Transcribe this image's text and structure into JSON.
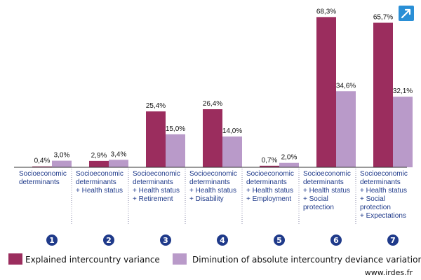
{
  "chart_data": {
    "type": "bar",
    "ylim": [
      0,
      70
    ],
    "grid": false,
    "legend_placement": "bottom",
    "categories": [
      {
        "number": "1",
        "lines": [
          "Socioeconomic",
          "determinants"
        ]
      },
      {
        "number": "2",
        "lines": [
          "Socioeconomic",
          "determinants",
          "+ Health status"
        ]
      },
      {
        "number": "3",
        "lines": [
          "Socioeconomic",
          "determinants",
          "+ Health status",
          "+ Retirement"
        ]
      },
      {
        "number": "4",
        "lines": [
          "Socioeconomic",
          "determinants",
          "+ Health status",
          "+ Disability"
        ]
      },
      {
        "number": "5",
        "lines": [
          "Socioeconomic",
          "determinants",
          "+ Health status",
          "+ Employment"
        ]
      },
      {
        "number": "6",
        "lines": [
          "Socioeconomic",
          "determinants",
          "+ Health status",
          "+ Social",
          "protection"
        ]
      },
      {
        "number": "7",
        "lines": [
          "Socioeconomic",
          "determinants",
          "+ Health status",
          "+ Social",
          "protection",
          "+ Expectations"
        ]
      }
    ],
    "series": [
      {
        "name": "Explained intercountry variance",
        "color": "#9b2d5e",
        "values": [
          0.4,
          2.9,
          25.4,
          26.4,
          0.7,
          68.3,
          65.7
        ],
        "labels": [
          "0,4%",
          "2,9%",
          "25,4%",
          "26,4%",
          "0,7%",
          "68,3%",
          "65,7%"
        ]
      },
      {
        "name": "Diminution of absolute intercountry deviance variation",
        "color": "#b99ac9",
        "values": [
          3.0,
          3.4,
          15.0,
          14.0,
          2.0,
          34.6,
          32.1
        ],
        "labels": [
          "3,0%",
          "3,4%",
          "15,0%",
          "14,0%",
          "2,0%",
          "34,6%",
          "32,1%"
        ]
      }
    ]
  },
  "colors": {
    "axis": "#333333",
    "separator": "#8a8aa8",
    "number_circle": "#1f3a8a",
    "corner_icon": "#2a8fd6"
  },
  "corner_icon": "arrow-expand-icon",
  "footer": {
    "site": "www.irdes.fr"
  }
}
